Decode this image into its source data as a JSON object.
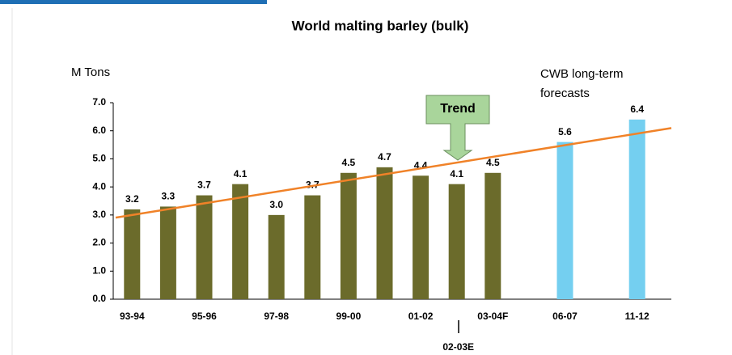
{
  "chart_data": {
    "type": "bar",
    "title": "World malting barley (bulk)",
    "y_label": "M Tons",
    "categories": [
      "93-94",
      null,
      "95-96",
      null,
      "97-98",
      null,
      "99-00",
      null,
      "01-02",
      "02-03E",
      "03-04F",
      null,
      "06-07",
      null,
      "11-12"
    ],
    "values": [
      3.2,
      3.3,
      3.7,
      4.1,
      3.0,
      3.7,
      4.5,
      4.7,
      4.4,
      4.1,
      4.5,
      null,
      5.6,
      null,
      6.4
    ],
    "value_labels": [
      "3.2",
      "3.3",
      "3.7",
      "4.1",
      "3.0",
      "3.7",
      "4.5",
      "4.7",
      "4.4",
      "4.1",
      "4.5",
      null,
      "5.6",
      null,
      "6.4"
    ],
    "colors": [
      "#6b6b2b",
      "#6b6b2b",
      "#6b6b2b",
      "#6b6b2b",
      "#6b6b2b",
      "#6b6b2b",
      "#6b6b2b",
      "#6b6b2b",
      "#6b6b2b",
      "#6b6b2b",
      "#6b6b2b",
      null,
      "#74cff0",
      null,
      "#74cff0"
    ],
    "ylim": [
      0,
      7
    ],
    "yticks": [
      {
        "value": 0,
        "label": "0.0"
      },
      {
        "value": 1,
        "label": "1.0"
      },
      {
        "value": 2,
        "label": "2.0"
      },
      {
        "value": 3,
        "label": "3.0"
      },
      {
        "value": 4,
        "label": "4.0"
      },
      {
        "value": 5,
        "label": "5.0"
      },
      {
        "value": 6,
        "label": "6.0"
      },
      {
        "value": 7,
        "label": "7.0"
      }
    ],
    "trend_line": {
      "color": "#f08228",
      "values": [
        3.0,
        5.9
      ]
    },
    "annotations": [
      "Trend",
      "CWB long-term forecasts"
    ]
  }
}
